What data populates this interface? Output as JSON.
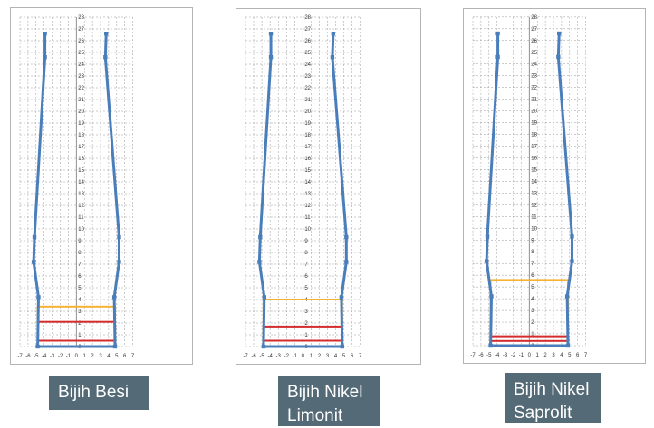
{
  "colors": {
    "profile": "#4a7ebb",
    "yellow_box": "#f5b336",
    "red_box": "#d42c2c",
    "grid": "#9a9a9a",
    "caption_bg": "#546a76"
  },
  "chart_data": [
    {
      "type": "line",
      "xlim": [
        -7,
        7
      ],
      "ylim": [
        0,
        28
      ],
      "grid": true,
      "x_ticks": [
        "-7",
        "-6",
        "-5",
        "-4",
        "-3",
        "-2",
        "-1",
        "0",
        "1",
        "2",
        "3",
        "4",
        "5",
        "6",
        "7"
      ],
      "y_ticks": [
        "0",
        "1",
        "2",
        "3",
        "4",
        "5",
        "6",
        "7",
        "8",
        "9",
        "10",
        "11",
        "12",
        "13",
        "14",
        "15",
        "16",
        "17",
        "18",
        "19",
        "20",
        "21",
        "22",
        "23",
        "24",
        "25",
        "26",
        "27",
        "28"
      ],
      "series": [
        {
          "points": [
            [
              -3.9,
              26.6
            ],
            [
              -3.9,
              24.6
            ],
            [
              -5.2,
              9.3
            ],
            [
              -5.3,
              7.2
            ],
            [
              -4.7,
              4.2
            ],
            [
              -4.8,
              0
            ],
            [
              4.8,
              0
            ],
            [
              4.7,
              4.2
            ],
            [
              5.3,
              7.2
            ],
            [
              5.3,
              9.3
            ],
            [
              3.6,
              24.6
            ],
            [
              3.7,
              26.6
            ]
          ]
        }
      ],
      "boxes": [
        {
          "color": "yellow",
          "x": [
            -4.8,
            4.8
          ],
          "y": [
            0,
            3.4
          ]
        },
        {
          "color": "red",
          "x": [
            -4.8,
            4.8
          ],
          "y": [
            0,
            2.1
          ]
        },
        {
          "color": "red",
          "x": [
            -4.8,
            4.8
          ],
          "y": [
            0,
            0.5
          ]
        }
      ]
    },
    {
      "type": "line",
      "xlim": [
        -7,
        7
      ],
      "ylim": [
        0,
        28
      ],
      "grid": true,
      "x_ticks": [
        "-7",
        "-6",
        "-5",
        "-4",
        "-3",
        "-2",
        "-1",
        "0",
        "1",
        "2",
        "3",
        "4",
        "5",
        "6",
        "7"
      ],
      "y_ticks": [
        "0",
        "1",
        "2",
        "3",
        "4",
        "5",
        "6",
        "7",
        "8",
        "9",
        "10",
        "11",
        "12",
        "13",
        "14",
        "15",
        "16",
        "17",
        "18",
        "19",
        "20",
        "21",
        "22",
        "23",
        "24",
        "25",
        "26",
        "27",
        "28"
      ],
      "series": [
        {
          "points": [
            [
              -3.9,
              26.6
            ],
            [
              -3.9,
              24.6
            ],
            [
              -5.2,
              9.3
            ],
            [
              -5.3,
              7.2
            ],
            [
              -4.7,
              4.2
            ],
            [
              -4.8,
              0
            ],
            [
              4.8,
              0
            ],
            [
              4.7,
              4.2
            ],
            [
              5.3,
              7.2
            ],
            [
              5.3,
              9.3
            ],
            [
              3.6,
              24.6
            ],
            [
              3.7,
              26.6
            ]
          ]
        }
      ],
      "boxes": [
        {
          "color": "yellow",
          "x": [
            -4.8,
            4.8
          ],
          "y": [
            0,
            4.0
          ]
        },
        {
          "color": "red",
          "x": [
            -4.8,
            4.8
          ],
          "y": [
            0,
            1.7
          ]
        },
        {
          "color": "red",
          "x": [
            -4.8,
            4.8
          ],
          "y": [
            0,
            0.5
          ]
        }
      ]
    },
    {
      "type": "line",
      "xlim": [
        -7,
        7
      ],
      "ylim": [
        0,
        28
      ],
      "grid": true,
      "x_ticks": [
        "-7",
        "-6",
        "-5",
        "-4",
        "-3",
        "-2",
        "-1",
        "0",
        "1",
        "2",
        "3",
        "4",
        "5",
        "6",
        "7"
      ],
      "y_ticks": [
        "0",
        "1",
        "2",
        "3",
        "4",
        "5",
        "6",
        "7",
        "8",
        "9",
        "10",
        "11",
        "12",
        "13",
        "14",
        "15",
        "16",
        "17",
        "18",
        "19",
        "20",
        "21",
        "22",
        "23",
        "24",
        "25",
        "26",
        "27",
        "28"
      ],
      "series": [
        {
          "points": [
            [
              -3.9,
              26.6
            ],
            [
              -3.9,
              24.6
            ],
            [
              -5.2,
              9.3
            ],
            [
              -5.3,
              7.2
            ],
            [
              -4.7,
              4.2
            ],
            [
              -4.8,
              0
            ],
            [
              4.8,
              0
            ],
            [
              4.7,
              4.2
            ],
            [
              5.3,
              7.2
            ],
            [
              5.3,
              9.3
            ],
            [
              3.6,
              24.6
            ],
            [
              3.7,
              26.6
            ]
          ]
        }
      ],
      "boxes": [
        {
          "color": "yellow",
          "x": [
            -4.8,
            4.8
          ],
          "y": [
            0,
            5.6
          ]
        },
        {
          "color": "red",
          "x": [
            -4.8,
            4.8
          ],
          "y": [
            0,
            0.8
          ]
        },
        {
          "color": "red",
          "x": [
            -4.8,
            4.8
          ],
          "y": [
            0,
            0.4
          ]
        }
      ]
    }
  ],
  "captions": {
    "besi": "Bijih Besi",
    "limonit": "Bijih Nikel Limonit",
    "saprolit": "Bijih Nikel Saprolit"
  }
}
